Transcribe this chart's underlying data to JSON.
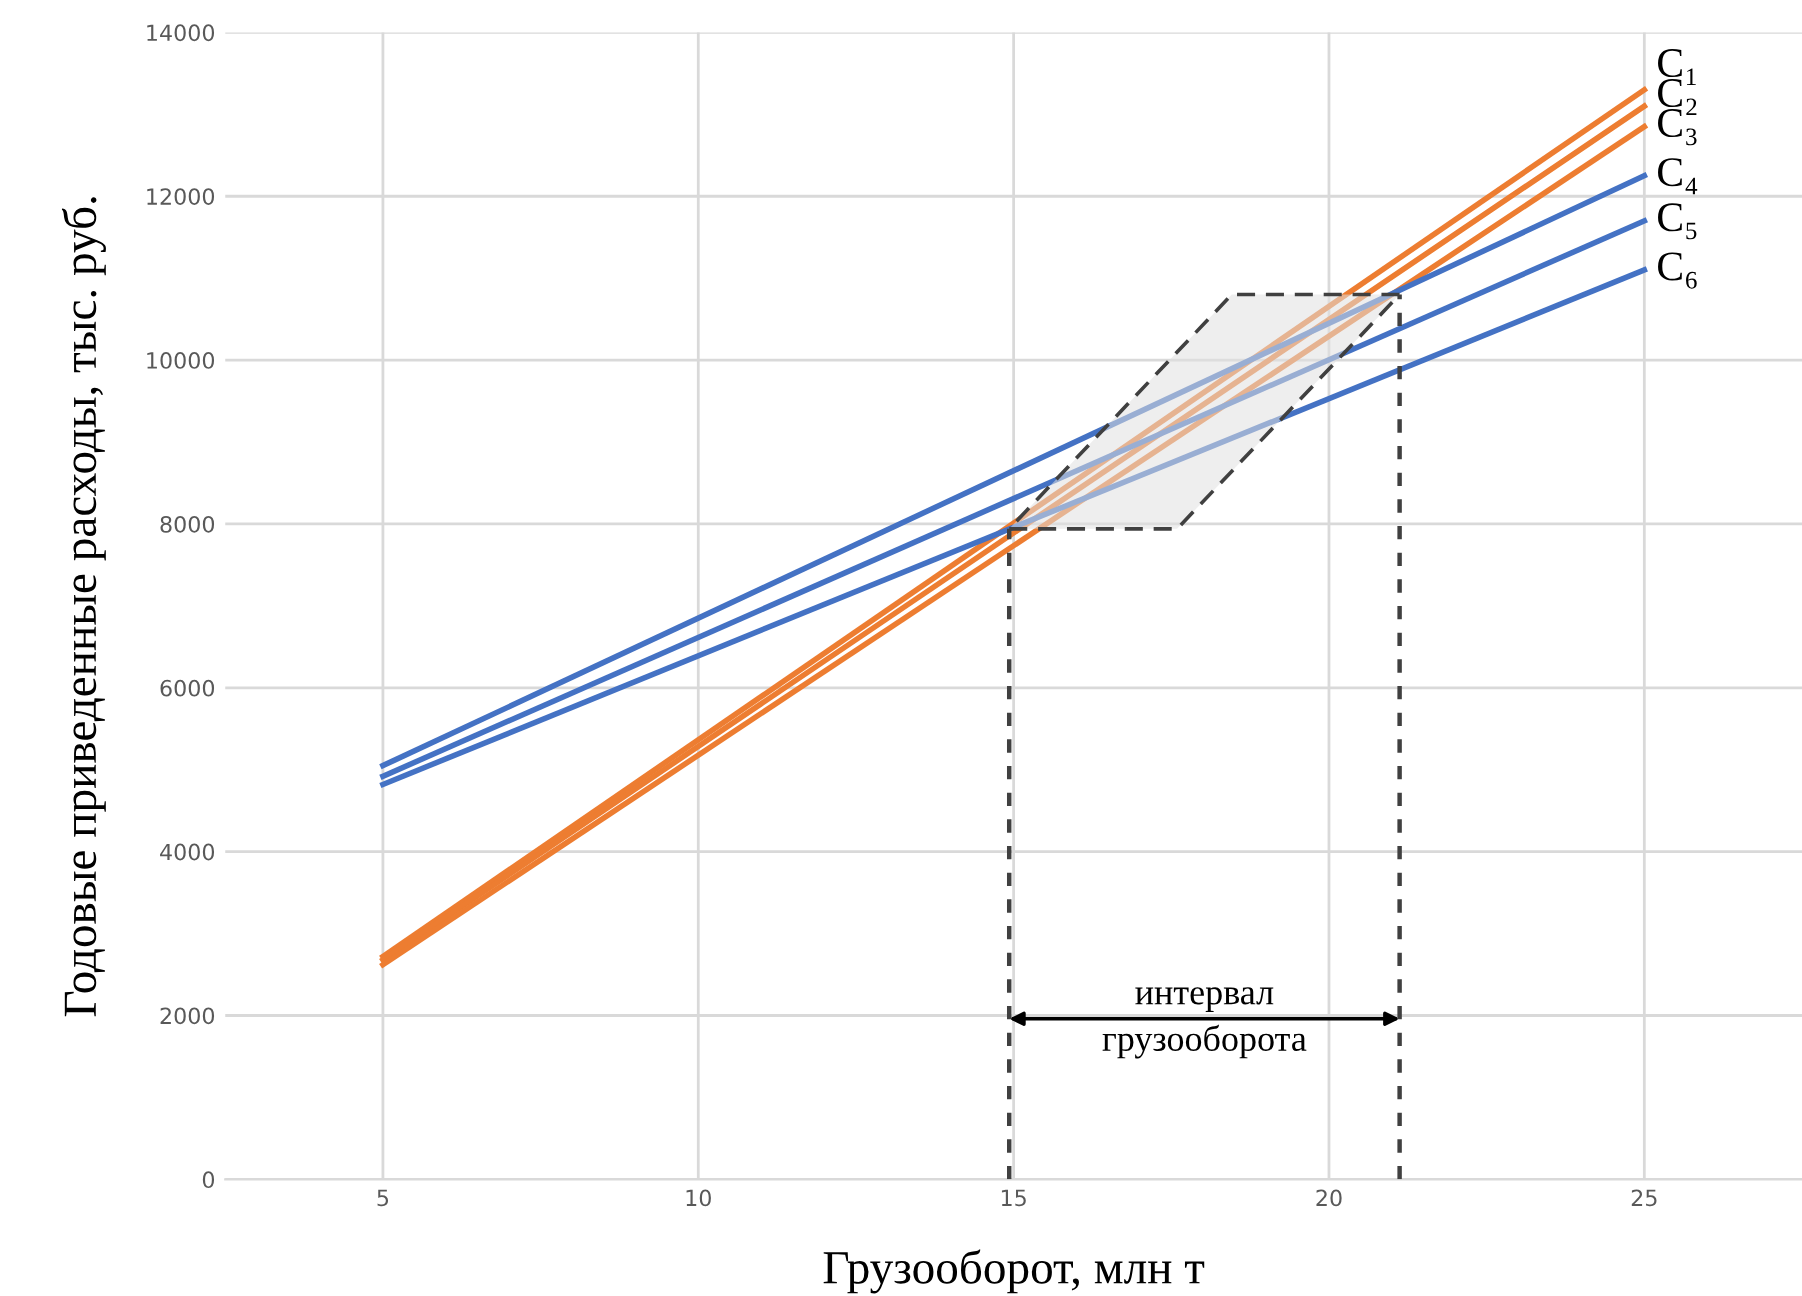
{
  "chart_data": {
    "type": "line",
    "xlabel": "Грузооборот, млн т",
    "ylabel": "Годовые приведенные расходы, тыс. руб.",
    "xlim": [
      2.5,
      27.5
    ],
    "xticks": [
      5,
      10,
      15,
      20,
      25
    ],
    "ylim": [
      0,
      14000
    ],
    "yticks": [
      0,
      2000,
      4000,
      6000,
      8000,
      10000,
      12000,
      14000
    ],
    "grid": true,
    "legend": false,
    "marker": "none",
    "line_style": "solid",
    "series": [
      {
        "name": "C₁",
        "color": "#ed7d31",
        "x": [
          5,
          25
        ],
        "values": [
          2720,
          13300
        ]
      },
      {
        "name": "C₂",
        "color": "#ed7d31",
        "x": [
          5,
          25
        ],
        "values": [
          2680,
          13100
        ]
      },
      {
        "name": "C₃",
        "color": "#ed7d31",
        "x": [
          5,
          25
        ],
        "values": [
          2620,
          12850
        ]
      },
      {
        "name": "C₄",
        "color": "#4472c4",
        "x": [
          5,
          25
        ],
        "values": [
          5050,
          12250
        ]
      },
      {
        "name": "C₅",
        "color": "#4472c4",
        "x": [
          5,
          25
        ],
        "values": [
          4920,
          11700
        ]
      },
      {
        "name": "C₆",
        "color": "#4472c4",
        "x": [
          5,
          25
        ],
        "values": [
          4820,
          11100
        ]
      },
      {
        "color": "#404040",
        "line_style": "dotted",
        "x": [
          14.93,
          14.93
        ],
        "values": [
          0,
          7940
        ]
      },
      {
        "color": "#404040",
        "line_style": "dotted",
        "x": [
          21.12,
          21.12
        ],
        "values": [
          0,
          10800
        ]
      }
    ],
    "annotations": [
      "интервал\nгрузооборота"
    ]
  }
}
